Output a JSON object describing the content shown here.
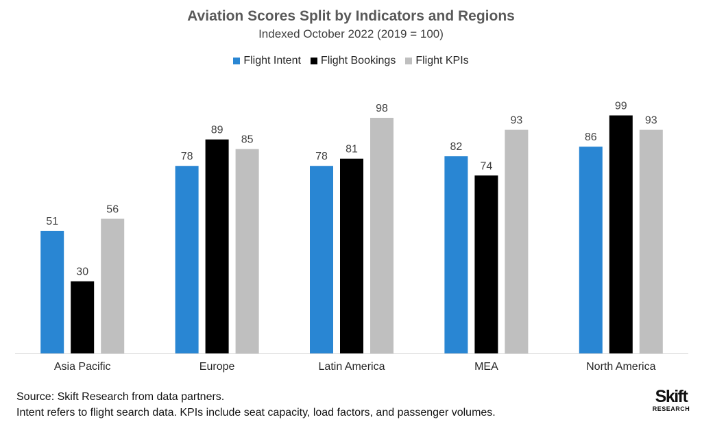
{
  "colors": {
    "flight_intent": "#2986d3",
    "flight_bookings": "#000000",
    "flight_kpis": "#bfbfbf",
    "axis": "#d9d9d9"
  },
  "chart_data": {
    "type": "bar",
    "title": "Aviation Scores Split by Indicators and Regions",
    "subtitle": "Indexed October 2022 (2019 = 100)",
    "xlabel": "",
    "ylabel": "",
    "ylim": [
      0,
      100
    ],
    "grid": false,
    "legend_position": "top-center",
    "categories": [
      "Asia Pacific",
      "Europe",
      "Latin America",
      "MEA",
      "North America"
    ],
    "series": [
      {
        "name": "Flight Intent",
        "color": "#2986d3",
        "values": [
          51,
          78,
          78,
          82,
          86
        ]
      },
      {
        "name": "Flight Bookings",
        "color": "#000000",
        "values": [
          30,
          89,
          81,
          74,
          99
        ]
      },
      {
        "name": "Flight KPIs",
        "color": "#bfbfbf",
        "values": [
          56,
          85,
          98,
          93,
          93
        ]
      }
    ]
  },
  "footer": {
    "source": "Source: Skift Research from data partners.",
    "note": "Intent refers to flight search data. KPIs include seat capacity, load factors, and passenger volumes."
  },
  "logo": {
    "main": "Skift",
    "sub": "RESEARCH"
  }
}
